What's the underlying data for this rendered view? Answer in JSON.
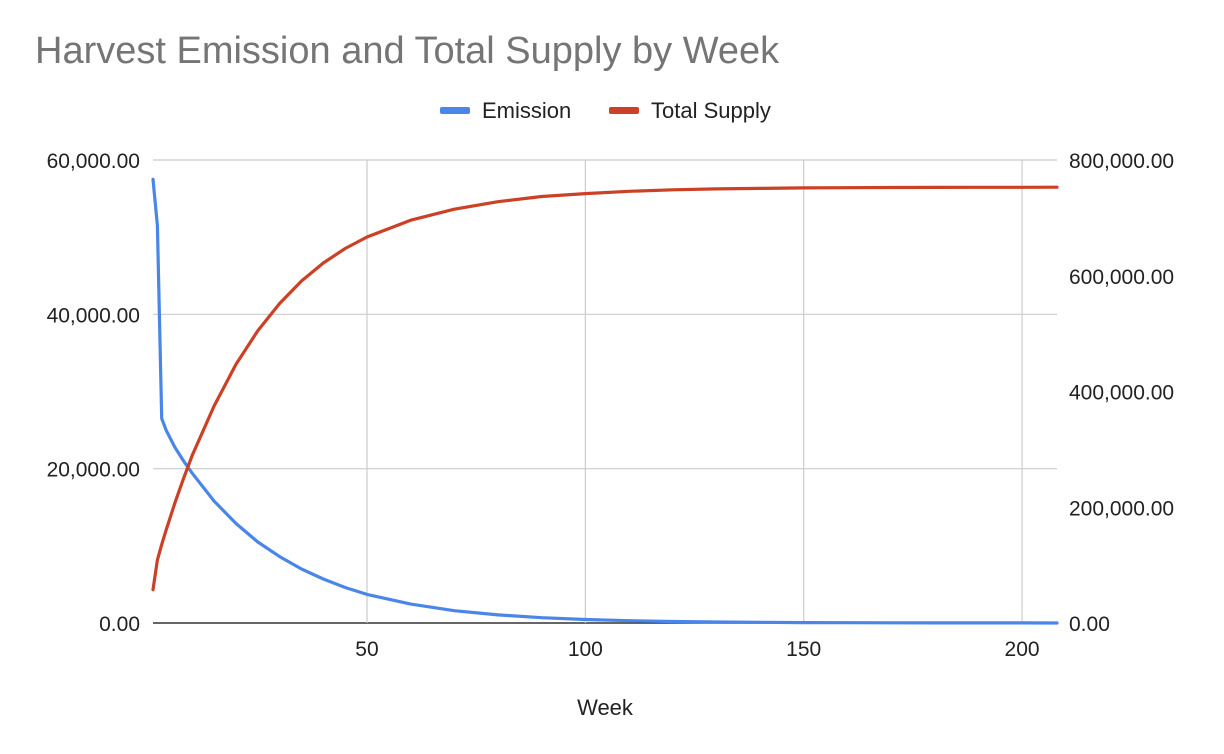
{
  "chart_data": {
    "type": "line",
    "title": "Harvest Emission and Total Supply by Week",
    "xlabel": "Week",
    "ylabel_left": "",
    "ylabel_right": "",
    "xlim": [
      1,
      208
    ],
    "ylim_left": [
      0,
      60000
    ],
    "ylim_right": [
      0,
      800000
    ],
    "x_ticks": [
      50,
      100,
      150,
      200
    ],
    "y_ticks_left": [
      0,
      20000,
      40000,
      60000
    ],
    "y_ticks_right": [
      0,
      200000,
      400000,
      600000,
      800000
    ],
    "y_tick_labels_left": [
      "0.00",
      "20,000.00",
      "40,000.00",
      "60,000.00"
    ],
    "y_tick_labels_right": [
      "0.00",
      "200,000.00",
      "400,000.00",
      "600,000.00",
      "800,000.00"
    ],
    "x_tick_labels": [
      "50",
      "100",
      "150",
      "200"
    ],
    "grid": true,
    "legend_position": "top-center",
    "series": [
      {
        "name": "Emission",
        "axis": "left",
        "color": "#4a86e8",
        "x": [
          1,
          2,
          3,
          4,
          6,
          8,
          10,
          15,
          20,
          25,
          30,
          35,
          40,
          45,
          50,
          60,
          70,
          80,
          90,
          100,
          110,
          120,
          130,
          140,
          150,
          160,
          170,
          180,
          190,
          200,
          208
        ],
        "values": [
          57500,
          51500,
          26500,
          25000,
          22800,
          21000,
          19400,
          15800,
          12900,
          10500,
          8600,
          7000,
          5700,
          4600,
          3700,
          2450,
          1600,
          1050,
          690,
          450,
          300,
          200,
          130,
          85,
          55,
          36,
          24,
          16,
          10,
          7,
          5
        ]
      },
      {
        "name": "Total Supply",
        "axis": "right",
        "color": "#cc4125",
        "x": [
          1,
          2,
          3,
          4,
          6,
          8,
          10,
          15,
          20,
          25,
          30,
          35,
          40,
          45,
          50,
          60,
          70,
          80,
          90,
          100,
          110,
          120,
          130,
          140,
          150,
          160,
          170,
          180,
          190,
          200,
          208
        ],
        "values": [
          57500,
          109000,
          135500,
          160500,
          207000,
          250000,
          290000,
          375000,
          447000,
          505000,
          552000,
          591000,
          622000,
          647000,
          667000,
          696000,
          715000,
          728000,
          737000,
          742000,
          746000,
          748500,
          750000,
          751000,
          751800,
          752200,
          752500,
          752700,
          752800,
          752900,
          753000
        ]
      }
    ]
  }
}
